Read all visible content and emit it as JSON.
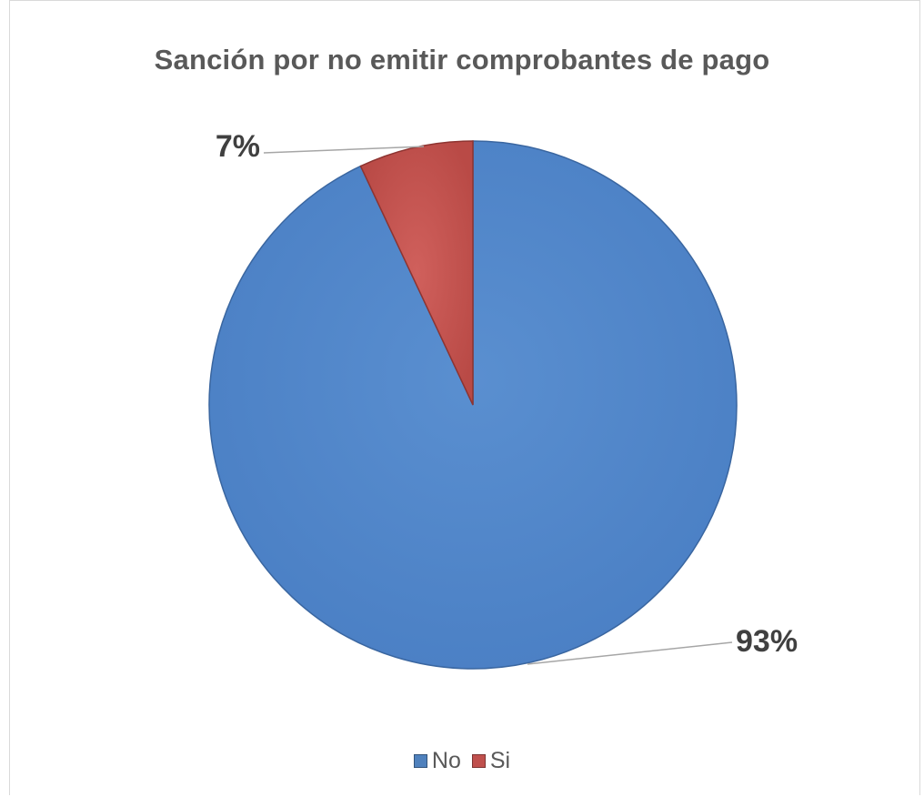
{
  "chart_data": {
    "type": "pie",
    "title": "Sanción por no emitir comprobantes de pago",
    "slices": [
      {
        "label": "No",
        "value": 93,
        "display": "93%",
        "color": "#4f81bd"
      },
      {
        "label": "Si",
        "value": 7,
        "display": "7%",
        "color": "#c0504d"
      }
    ],
    "legend": {
      "position": "bottom",
      "entries": [
        "No",
        "Si"
      ]
    }
  }
}
